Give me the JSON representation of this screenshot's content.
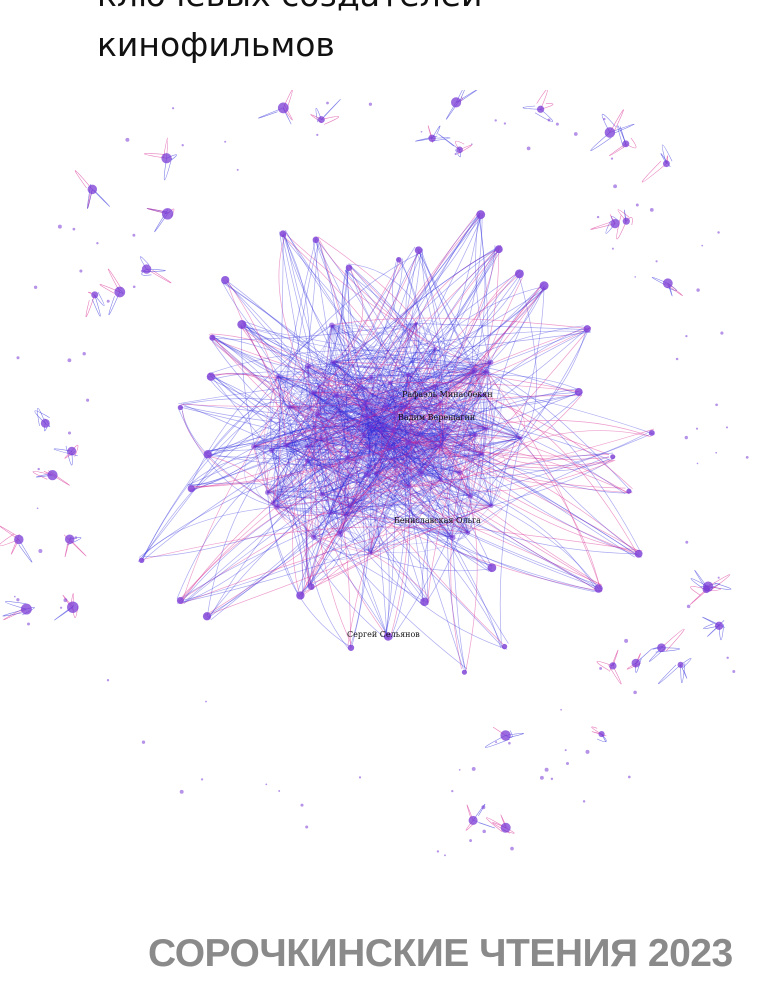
{
  "slide": {
    "title_line_1": "ключевых создателей",
    "title_line_2": "кинофильмов",
    "footer": "СОРОЧКИНСКИЕ ЧТЕНИЯ 2023"
  },
  "network": {
    "node_labels": [
      "Рафаэль Минасбекян",
      "Вадим Верещагин",
      "Бениславская Ольга",
      "Сергей Сельянов"
    ],
    "colors": {
      "edge_primary": "#2d2bdb",
      "edge_secondary": "#d6258f",
      "node": "#7a3bd6"
    }
  }
}
